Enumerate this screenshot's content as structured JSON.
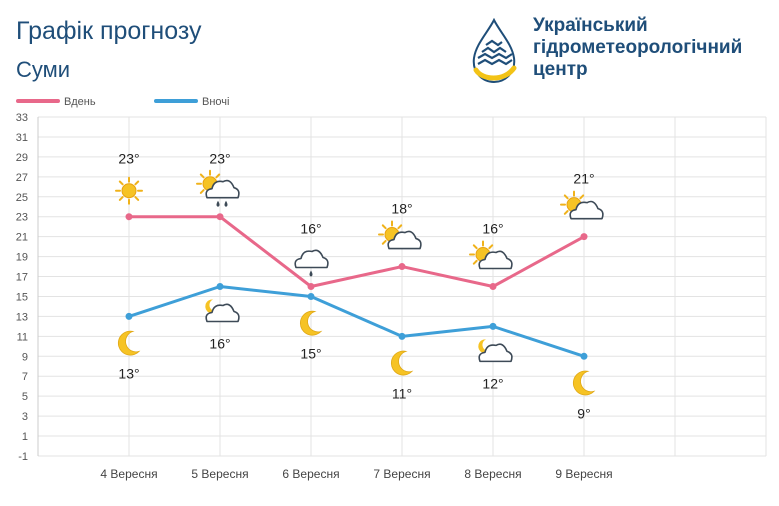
{
  "header": {
    "title": "Графік прогнозу",
    "city": "Суми"
  },
  "org": {
    "line1": "Український",
    "line2": "гідрометеорологічний",
    "line3": "центр"
  },
  "colors": {
    "day": "#e8688a",
    "night": "#3e9fd8",
    "title": "#1f4e79",
    "grid": "#e3e3e3"
  },
  "chart_data": {
    "type": "line",
    "categories": [
      "4 Вересня",
      "5 Вересня",
      "6 Вересня",
      "7 Вересня",
      "8 Вересня",
      "9 Вересня"
    ],
    "ylim": [
      -1,
      33
    ],
    "yticks": [
      -1,
      1,
      3,
      5,
      7,
      9,
      11,
      13,
      15,
      17,
      19,
      21,
      23,
      25,
      27,
      29,
      31,
      33
    ],
    "grid": true,
    "legend": "top-left",
    "series": [
      {
        "name": "Вдень",
        "values": [
          23,
          23,
          16,
          18,
          16,
          21
        ],
        "labels": [
          "23°",
          "23°",
          "16°",
          "18°",
          "16°",
          "21°"
        ],
        "icons": [
          "sun-icon",
          "partly-cloudy-rain-icon",
          "cloud-rain-icon",
          "partly-cloudy-icon",
          "partly-cloudy-icon",
          "partly-cloudy-icon"
        ]
      },
      {
        "name": "Вночі",
        "values": [
          13,
          16,
          15,
          11,
          12,
          9
        ],
        "labels": [
          "13°",
          "16°",
          "15°",
          "11°",
          "12°",
          "9°"
        ],
        "icons": [
          "moon-icon",
          "partly-cloudy-night-icon",
          "moon-icon",
          "moon-icon",
          "partly-cloudy-night-icon",
          "moon-icon"
        ]
      }
    ]
  }
}
